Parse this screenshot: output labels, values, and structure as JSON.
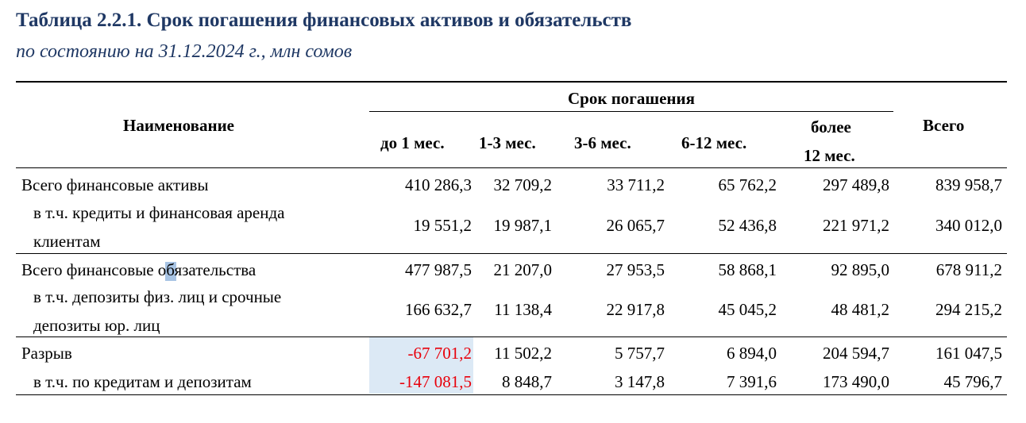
{
  "title": "Таблица 2.2.1. Срок погашения финансовых активов и обязательств",
  "subtitle": "по состоянию на 31.12.2024 г., млн сомов",
  "header": {
    "name": "Наименование",
    "group": "Срок погашения",
    "total": "Всего",
    "columns": [
      "до 1 мес.",
      "1-3 мес.",
      "3-6 мес.",
      "6-12 мес.",
      "более",
      "12 мес."
    ]
  },
  "rows": [
    {
      "label": "Всего финансовые активы",
      "values": [
        "410 286,3",
        "32 709,2",
        "33 711,2",
        "65 762,2",
        "297 489,8",
        "839 958,7"
      ]
    },
    {
      "label_1": "в т.ч. кредиты и финансовая аренда",
      "label_2": "клиентам",
      "values": [
        "19 551,2",
        "19 987,1",
        "26 065,7",
        "52 436,8",
        "221 971,2",
        "340 012,0"
      ]
    },
    {
      "label": "Всего финансовые обязательства",
      "values": [
        "477 987,5",
        "21 207,0",
        "27 953,5",
        "58 868,1",
        "92 895,0",
        "678 911,2"
      ]
    },
    {
      "label_1": "в т.ч. депозиты физ. лиц и срочные",
      "label_2": "депозиты юр. лиц",
      "values": [
        "166 632,7",
        "11 138,4",
        "22 917,8",
        "45 045,2",
        "48 481,2",
        "294 215,2"
      ]
    },
    {
      "label": "Разрыв",
      "values": [
        "-67 701,2",
        "11 502,2",
        "5 757,7",
        "6 894,0",
        "204 594,7",
        "161 047,5"
      ]
    },
    {
      "label": "в т.ч. по кредитам и депозитам",
      "values": [
        "-147 081,5",
        "8 848,7",
        "3 147,8",
        "7 391,6",
        "173 490,0",
        "45 796,7"
      ]
    }
  ],
  "colors": {
    "title": "#1f3864",
    "negative": "#e8000b",
    "highlight": "#dce9f5"
  }
}
